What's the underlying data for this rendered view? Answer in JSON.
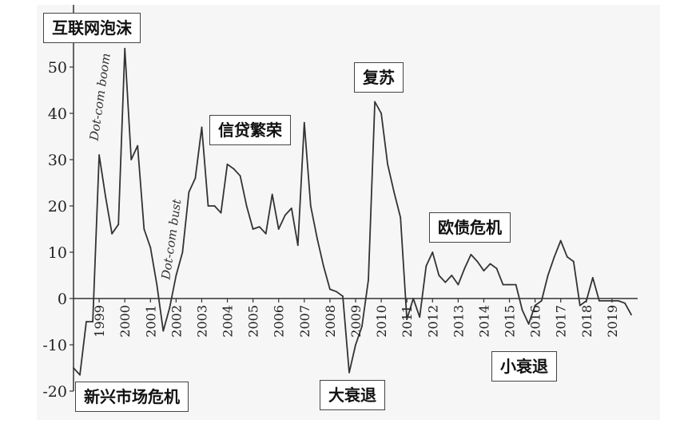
{
  "chart_data": {
    "type": "line",
    "title": "",
    "xlabel": "",
    "ylabel": "",
    "ylim": [
      -20,
      60
    ],
    "yticks": [
      -20,
      -10,
      0,
      10,
      20,
      30,
      40,
      50
    ],
    "xticks": [
      "1999",
      "2000",
      "2001",
      "2002",
      "2003",
      "2004",
      "2005",
      "2006",
      "2007",
      "2008",
      "2009",
      "2010",
      "2011",
      "2012",
      "2013",
      "2014",
      "2015",
      "2016",
      "2017",
      "2018",
      "2019"
    ],
    "grid": false,
    "line_color": "#333333",
    "series": [
      {
        "x": [
          1998.0,
          1998.25,
          1998.5,
          1998.75,
          1999.0,
          1999.25,
          1999.5,
          1999.75,
          2000.0,
          2000.25,
          2000.5,
          2000.75,
          2001.0,
          2001.25,
          2001.5,
          2001.75,
          2002.0,
          2002.25,
          2002.5,
          2002.75,
          2003.0,
          2003.25,
          2003.5,
          2003.75,
          2004.0,
          2004.25,
          2004.5,
          2004.75,
          2005.0,
          2005.25,
          2005.5,
          2005.75,
          2006.0,
          2006.25,
          2006.5,
          2006.75,
          2007.0,
          2007.25,
          2007.5,
          2007.75,
          2008.0,
          2008.25,
          2008.5,
          2008.75,
          2009.0,
          2009.25,
          2009.5,
          2009.75,
          2010.0,
          2010.25,
          2010.5,
          2010.75,
          2011.0,
          2011.25,
          2011.5,
          2011.75,
          2012.0,
          2012.25,
          2012.5,
          2012.75,
          2013.0,
          2013.25,
          2013.5,
          2013.75,
          2014.0,
          2014.25,
          2014.5,
          2014.75,
          2015.0,
          2015.25,
          2015.5,
          2015.75,
          2016.0,
          2016.25,
          2016.5,
          2016.75,
          2017.0,
          2017.25,
          2017.5,
          2017.75,
          2018.0,
          2018.25,
          2018.5,
          2018.75,
          2019.0,
          2019.25,
          2019.5,
          2019.75
        ],
        "y": [
          -15,
          -16.5,
          -5,
          -5,
          31,
          22,
          14,
          16,
          54,
          30,
          33,
          15,
          11,
          3,
          -7,
          -2,
          5,
          10,
          23,
          26,
          37,
          20,
          20,
          18.5,
          29,
          28,
          26.5,
          20,
          15,
          15.5,
          14,
          22.5,
          15,
          18,
          19.5,
          11.5,
          38,
          20,
          13,
          7,
          2,
          1.5,
          0.5,
          -16,
          -10,
          -6,
          4,
          42.5,
          40,
          29,
          23,
          17.5,
          -4.5,
          0,
          -4,
          7,
          10,
          5,
          3.5,
          5,
          3,
          6.5,
          9.5,
          8,
          6,
          7.5,
          6.5,
          3,
          3,
          3,
          -2.5,
          -5.5,
          -1.5,
          -0.5,
          5,
          9,
          12.5,
          9,
          8,
          -1.5,
          -0.5,
          4.5,
          -0.5,
          -0.5,
          -0.5,
          -0.5,
          -1,
          -3.5
        ]
      }
    ],
    "annotations": [
      {
        "label": "互联网泡沫",
        "x": 2000.0,
        "y": 58
      },
      {
        "label": "新兴市场危机",
        "x": 1998.75,
        "y": -23
      },
      {
        "label": "信贷繁荣",
        "x": 2005.3,
        "y": 36
      },
      {
        "label": "大衰退",
        "x": 2009.5,
        "y": -21
      },
      {
        "label": "复苏",
        "x": 2010.0,
        "y": 47
      },
      {
        "label": "欧债危机",
        "x": 2013.5,
        "y": 14.5
      },
      {
        "label": "小衰退",
        "x": 2017.0,
        "y": -15.5
      }
    ],
    "rotated_notes": [
      {
        "label": "Dot-com boom",
        "x": 1998.95,
        "y": 34
      },
      {
        "label": "Dot-com bust",
        "x": 2001.75,
        "y": 4
      }
    ]
  }
}
